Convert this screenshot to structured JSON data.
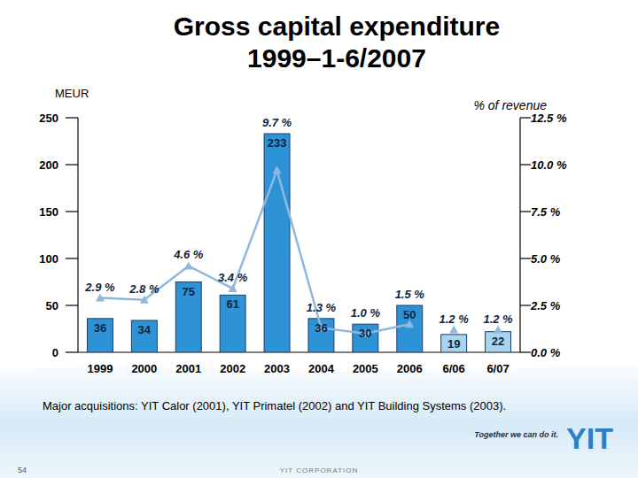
{
  "chart_data": {
    "type": "bar",
    "title": "Gross capital expenditure 1999–1-6/2007",
    "ylabel": "MEUR",
    "y2label": "% of revenue",
    "categories": [
      "1999",
      "2000",
      "2001",
      "2002",
      "2003",
      "2004",
      "2005",
      "2006",
      "6/06",
      "6/07"
    ],
    "series": [
      {
        "type": "bar",
        "values": [
          36,
          34,
          75,
          61,
          233,
          36,
          30,
          50,
          19,
          22
        ],
        "colors": [
          "#2e93d6",
          "#2e93d6",
          "#2e93d6",
          "#2e93d6",
          "#2e93d6",
          "#2e93d6",
          "#2e93d6",
          "#2e93d6",
          "#a9d4ef",
          "#a9d4ef"
        ],
        "data_labels": true
      },
      {
        "type": "line",
        "axis": "y2",
        "color": "#8fb8dc",
        "marker": "triangle",
        "line_style": "solid",
        "values": [
          2.9,
          2.8,
          4.6,
          3.4,
          9.7,
          1.3,
          1.0,
          1.5,
          null,
          null
        ],
        "value_labels": [
          "2.9 %",
          "2.8 %",
          "4.6 %",
          "3.4 %",
          "9.7 %",
          "1.3 %",
          "1.0 %",
          "1.5 %",
          null,
          null
        ],
        "data_labels": true
      },
      {
        "type": "line",
        "axis": "y2",
        "color": "#8fb8dc",
        "marker": "triangle",
        "line_style": "none",
        "values": [
          null,
          null,
          null,
          null,
          null,
          null,
          null,
          null,
          1.2,
          1.2
        ],
        "value_labels": [
          null,
          null,
          null,
          null,
          null,
          null,
          null,
          null,
          "1.2 %",
          "1.2 %"
        ],
        "data_labels": true
      }
    ],
    "ylim": [
      0,
      250
    ],
    "yticks": [
      0,
      50,
      100,
      150,
      200,
      250
    ],
    "y2lim": [
      0,
      12.5
    ],
    "y2ticks": [
      {
        "value": 0,
        "label": "0.0 %"
      },
      {
        "value": 2.5,
        "label": "2.5 %"
      },
      {
        "value": 5,
        "label": "5.0 %"
      },
      {
        "value": 7.5,
        "label": "7.5 %"
      },
      {
        "value": 10,
        "label": "10.0 %"
      },
      {
        "value": 12.5,
        "label": "12.5 %"
      }
    ],
    "grid": false,
    "footnote": "Major acquisitions: YIT Calor (2001), YIT Primatel (2002) and YIT Building Systems (2003)."
  },
  "footer": {
    "page": "54",
    "company": "YIT CORPORATION",
    "slogan": "Together we can do it.",
    "logo": "YIT"
  }
}
